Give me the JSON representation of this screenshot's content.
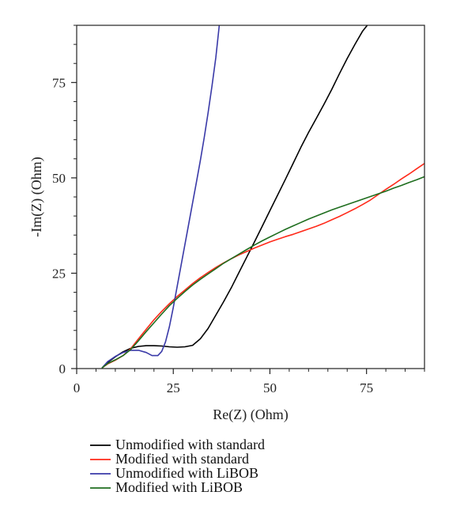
{
  "chart_data": {
    "type": "line",
    "title": "",
    "xlabel": "Re(Z) (Ohm)",
    "ylabel": "-Im(Z) (Ohm)",
    "xlim": [
      0,
      90
    ],
    "ylim": [
      0,
      90
    ],
    "xticks": [
      0,
      25,
      50,
      75
    ],
    "yticks": [
      0,
      25,
      50,
      75
    ],
    "grid": false,
    "legend_position": "bottom-left",
    "series": [
      {
        "name": "Unmodified with standard",
        "color": "#000000",
        "points": [
          [
            6.6,
            0.2
          ],
          [
            8,
            1.6
          ],
          [
            10,
            3.1
          ],
          [
            12,
            4.4
          ],
          [
            14,
            5.3
          ],
          [
            16,
            5.8
          ],
          [
            18,
            6.0
          ],
          [
            20,
            6.0
          ],
          [
            22,
            5.9
          ],
          [
            24,
            5.7
          ],
          [
            26,
            5.6
          ],
          [
            28,
            5.7
          ],
          [
            30,
            6.1
          ],
          [
            32,
            7.8
          ],
          [
            34,
            10.5
          ],
          [
            36,
            14.0
          ],
          [
            38,
            17.5
          ],
          [
            40,
            21.2
          ],
          [
            42,
            25.2
          ],
          [
            44,
            29.2
          ],
          [
            46,
            33.2
          ],
          [
            48,
            37.3
          ],
          [
            50,
            41.4
          ],
          [
            52,
            45.5
          ],
          [
            54,
            49.6
          ],
          [
            56,
            53.8
          ],
          [
            58,
            58.0
          ],
          [
            60,
            61.9
          ],
          [
            62,
            65.6
          ],
          [
            64,
            69.3
          ],
          [
            66,
            73.2
          ],
          [
            68,
            77.3
          ],
          [
            70,
            81.3
          ],
          [
            72,
            85.0
          ],
          [
            74,
            88.5
          ],
          [
            75.2,
            90
          ]
        ]
      },
      {
        "name": "Modified with standard",
        "color": "#ff2a1a",
        "points": [
          [
            6.6,
            0.2
          ],
          [
            8,
            1.2
          ],
          [
            10,
            2.2
          ],
          [
            12,
            3.4
          ],
          [
            14,
            5.2
          ],
          [
            16,
            7.8
          ],
          [
            18,
            10.3
          ],
          [
            20,
            12.8
          ],
          [
            22,
            15.0
          ],
          [
            24,
            17.0
          ],
          [
            26,
            18.9
          ],
          [
            28,
            20.6
          ],
          [
            30,
            22.3
          ],
          [
            32,
            23.8
          ],
          [
            34,
            25.2
          ],
          [
            36,
            26.5
          ],
          [
            38,
            27.7
          ],
          [
            40,
            28.8
          ],
          [
            42,
            29.8
          ],
          [
            44,
            30.7
          ],
          [
            46,
            31.6
          ],
          [
            48,
            32.4
          ],
          [
            50,
            33.2
          ],
          [
            52,
            33.9
          ],
          [
            54,
            34.6
          ],
          [
            56,
            35.2
          ],
          [
            58,
            35.9
          ],
          [
            60,
            36.6
          ],
          [
            62,
            37.3
          ],
          [
            64,
            38.1
          ],
          [
            66,
            39.0
          ],
          [
            68,
            39.9
          ],
          [
            70,
            40.9
          ],
          [
            72,
            41.9
          ],
          [
            74,
            43.0
          ],
          [
            76,
            44.2
          ],
          [
            78,
            45.6
          ],
          [
            80,
            47.0
          ],
          [
            82,
            48.3
          ],
          [
            84,
            49.7
          ],
          [
            86,
            51.0
          ],
          [
            88,
            52.4
          ],
          [
            90,
            53.8
          ]
        ]
      },
      {
        "name": "Unmodified with LiBOB",
        "color": "#3a3aa8",
        "points": [
          [
            6.6,
            0.2
          ],
          [
            8,
            1.8
          ],
          [
            10,
            3.2
          ],
          [
            12,
            4.2
          ],
          [
            14,
            4.8
          ],
          [
            16,
            4.8
          ],
          [
            18,
            4.2
          ],
          [
            19.5,
            3.4
          ],
          [
            21,
            3.4
          ],
          [
            22,
            4.5
          ],
          [
            23,
            7.0
          ],
          [
            24,
            11.0
          ],
          [
            25,
            16.0
          ],
          [
            26,
            21.5
          ],
          [
            27,
            27.0
          ],
          [
            28,
            32.5
          ],
          [
            29,
            38.0
          ],
          [
            30,
            43.5
          ],
          [
            31,
            49.0
          ],
          [
            32,
            54.5
          ],
          [
            33,
            60.5
          ],
          [
            34,
            67.0
          ],
          [
            35,
            74.0
          ],
          [
            36,
            81.5
          ],
          [
            36.9,
            90
          ]
        ]
      },
      {
        "name": "Modified with LiBOB",
        "color": "#1f6e1f",
        "points": [
          [
            6.6,
            0.2
          ],
          [
            8,
            1.3
          ],
          [
            10,
            2.3
          ],
          [
            12,
            3.4
          ],
          [
            14,
            5.0
          ],
          [
            16,
            7.3
          ],
          [
            18,
            9.7
          ],
          [
            20,
            12.0
          ],
          [
            22,
            14.3
          ],
          [
            24,
            16.5
          ],
          [
            26,
            18.4
          ],
          [
            28,
            20.2
          ],
          [
            30,
            21.9
          ],
          [
            32,
            23.4
          ],
          [
            34,
            24.8
          ],
          [
            36,
            26.2
          ],
          [
            38,
            27.6
          ],
          [
            40,
            28.8
          ],
          [
            42,
            30.0
          ],
          [
            44,
            31.2
          ],
          [
            46,
            32.4
          ],
          [
            48,
            33.5
          ],
          [
            50,
            34.5
          ],
          [
            52,
            35.5
          ],
          [
            54,
            36.5
          ],
          [
            56,
            37.4
          ],
          [
            58,
            38.3
          ],
          [
            60,
            39.2
          ],
          [
            62,
            40.0
          ],
          [
            64,
            40.8
          ],
          [
            66,
            41.6
          ],
          [
            68,
            42.3
          ],
          [
            70,
            43.0
          ],
          [
            72,
            43.7
          ],
          [
            74,
            44.4
          ],
          [
            76,
            45.1
          ],
          [
            78,
            45.8
          ],
          [
            80,
            46.5
          ],
          [
            82,
            47.3
          ],
          [
            84,
            48.0
          ],
          [
            86,
            48.8
          ],
          [
            88,
            49.5
          ],
          [
            90,
            50.3
          ]
        ]
      }
    ]
  }
}
